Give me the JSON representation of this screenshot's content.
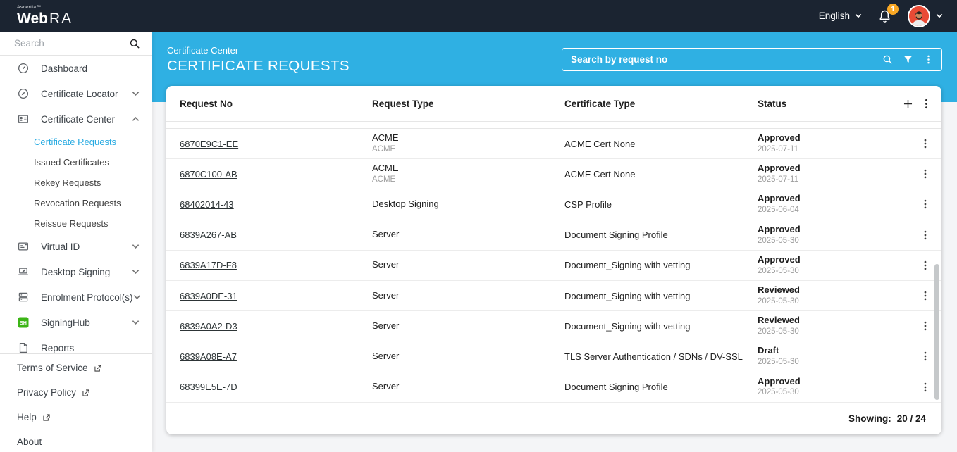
{
  "topbar": {
    "brand_prefix": "Ascertia™",
    "brand_web": "Web",
    "brand_ra": "RA",
    "language": "English",
    "notification_count": "1"
  },
  "sidebar": {
    "search_placeholder": "Search",
    "items": [
      {
        "label": "Dashboard",
        "icon": "dashboard-icon"
      },
      {
        "label": "Certificate Locator",
        "icon": "certificate-locator-icon",
        "chevron": "down"
      },
      {
        "label": "Certificate Center",
        "icon": "certificate-center-icon",
        "chevron": "up"
      },
      {
        "label": "Certificate Requests",
        "sub": true,
        "active": true
      },
      {
        "label": "Issued Certificates",
        "sub": true
      },
      {
        "label": "Rekey Requests",
        "sub": true
      },
      {
        "label": "Revocation Requests",
        "sub": true
      },
      {
        "label": "Reissue Requests",
        "sub": true
      },
      {
        "label": "Virtual ID",
        "icon": "virtual-id-icon",
        "chevron": "down"
      },
      {
        "label": "Desktop Signing",
        "icon": "desktop-signing-icon",
        "chevron": "down"
      },
      {
        "label": "Enrolment Protocol(s)",
        "icon": "enrolment-protocols-icon",
        "chevron": "down"
      },
      {
        "label": "SigningHub",
        "icon": "signinghub-icon",
        "chevron": "down"
      },
      {
        "label": "Reports",
        "icon": "reports-icon"
      }
    ],
    "footer_links": [
      {
        "label": "Terms of Service",
        "external": true
      },
      {
        "label": "Privacy Policy",
        "external": true
      },
      {
        "label": "Help",
        "external": true
      },
      {
        "label": "About",
        "external": false
      }
    ]
  },
  "page_header": {
    "breadcrumb": "Certificate Center",
    "title": "CERTIFICATE REQUESTS",
    "search_placeholder": "Search by request no"
  },
  "table": {
    "columns": [
      "Request No",
      "Request Type",
      "Certificate Type",
      "Status"
    ],
    "rows": [
      {
        "request_no": "6870E9C1-EE",
        "request_type": "ACME",
        "request_type_sub": "ACME",
        "certificate_type": "ACME Cert None",
        "status": "Approved",
        "status_date": "2025-07-11"
      },
      {
        "request_no": "6870C100-AB",
        "request_type": "ACME",
        "request_type_sub": "ACME",
        "certificate_type": "ACME Cert None",
        "status": "Approved",
        "status_date": "2025-07-11"
      },
      {
        "request_no": "68402014-43",
        "request_type": "Desktop Signing",
        "certificate_type": "CSP Profile",
        "status": "Approved",
        "status_date": "2025-06-04"
      },
      {
        "request_no": "6839A267-AB",
        "request_type": "Server",
        "certificate_type": "Document Signing Profile",
        "status": "Approved",
        "status_date": "2025-05-30"
      },
      {
        "request_no": "6839A17D-F8",
        "request_type": "Server",
        "certificate_type": "Document_Signing with vetting",
        "status": "Approved",
        "status_date": "2025-05-30"
      },
      {
        "request_no": "6839A0DE-31",
        "request_type": "Server",
        "certificate_type": "Document_Signing with vetting",
        "status": "Reviewed",
        "status_date": "2025-05-30"
      },
      {
        "request_no": "6839A0A2-D3",
        "request_type": "Server",
        "certificate_type": "Document_Signing with vetting",
        "status": "Reviewed",
        "status_date": "2025-05-30"
      },
      {
        "request_no": "6839A08E-A7",
        "request_type": "Server",
        "certificate_type": "TLS Server Authentication / SDNs / DV-SSL",
        "status": "Draft",
        "status_date": "2025-05-30"
      },
      {
        "request_no": "68399E5E-7D",
        "request_type": "Server",
        "certificate_type": "Document Signing Profile",
        "status": "Approved",
        "status_date": "2025-05-30"
      }
    ],
    "showing_label": "Showing:",
    "showing_value": "20 / 24"
  },
  "colors": {
    "topbar_bg": "#1b2431",
    "accent_blue": "#2fb0e3",
    "active_link": "#29abe2",
    "badge_orange": "#f9a825",
    "signinghub_green": "#3cb516",
    "status_text": "#1d1d1d",
    "muted_text": "#9e9e9e"
  }
}
